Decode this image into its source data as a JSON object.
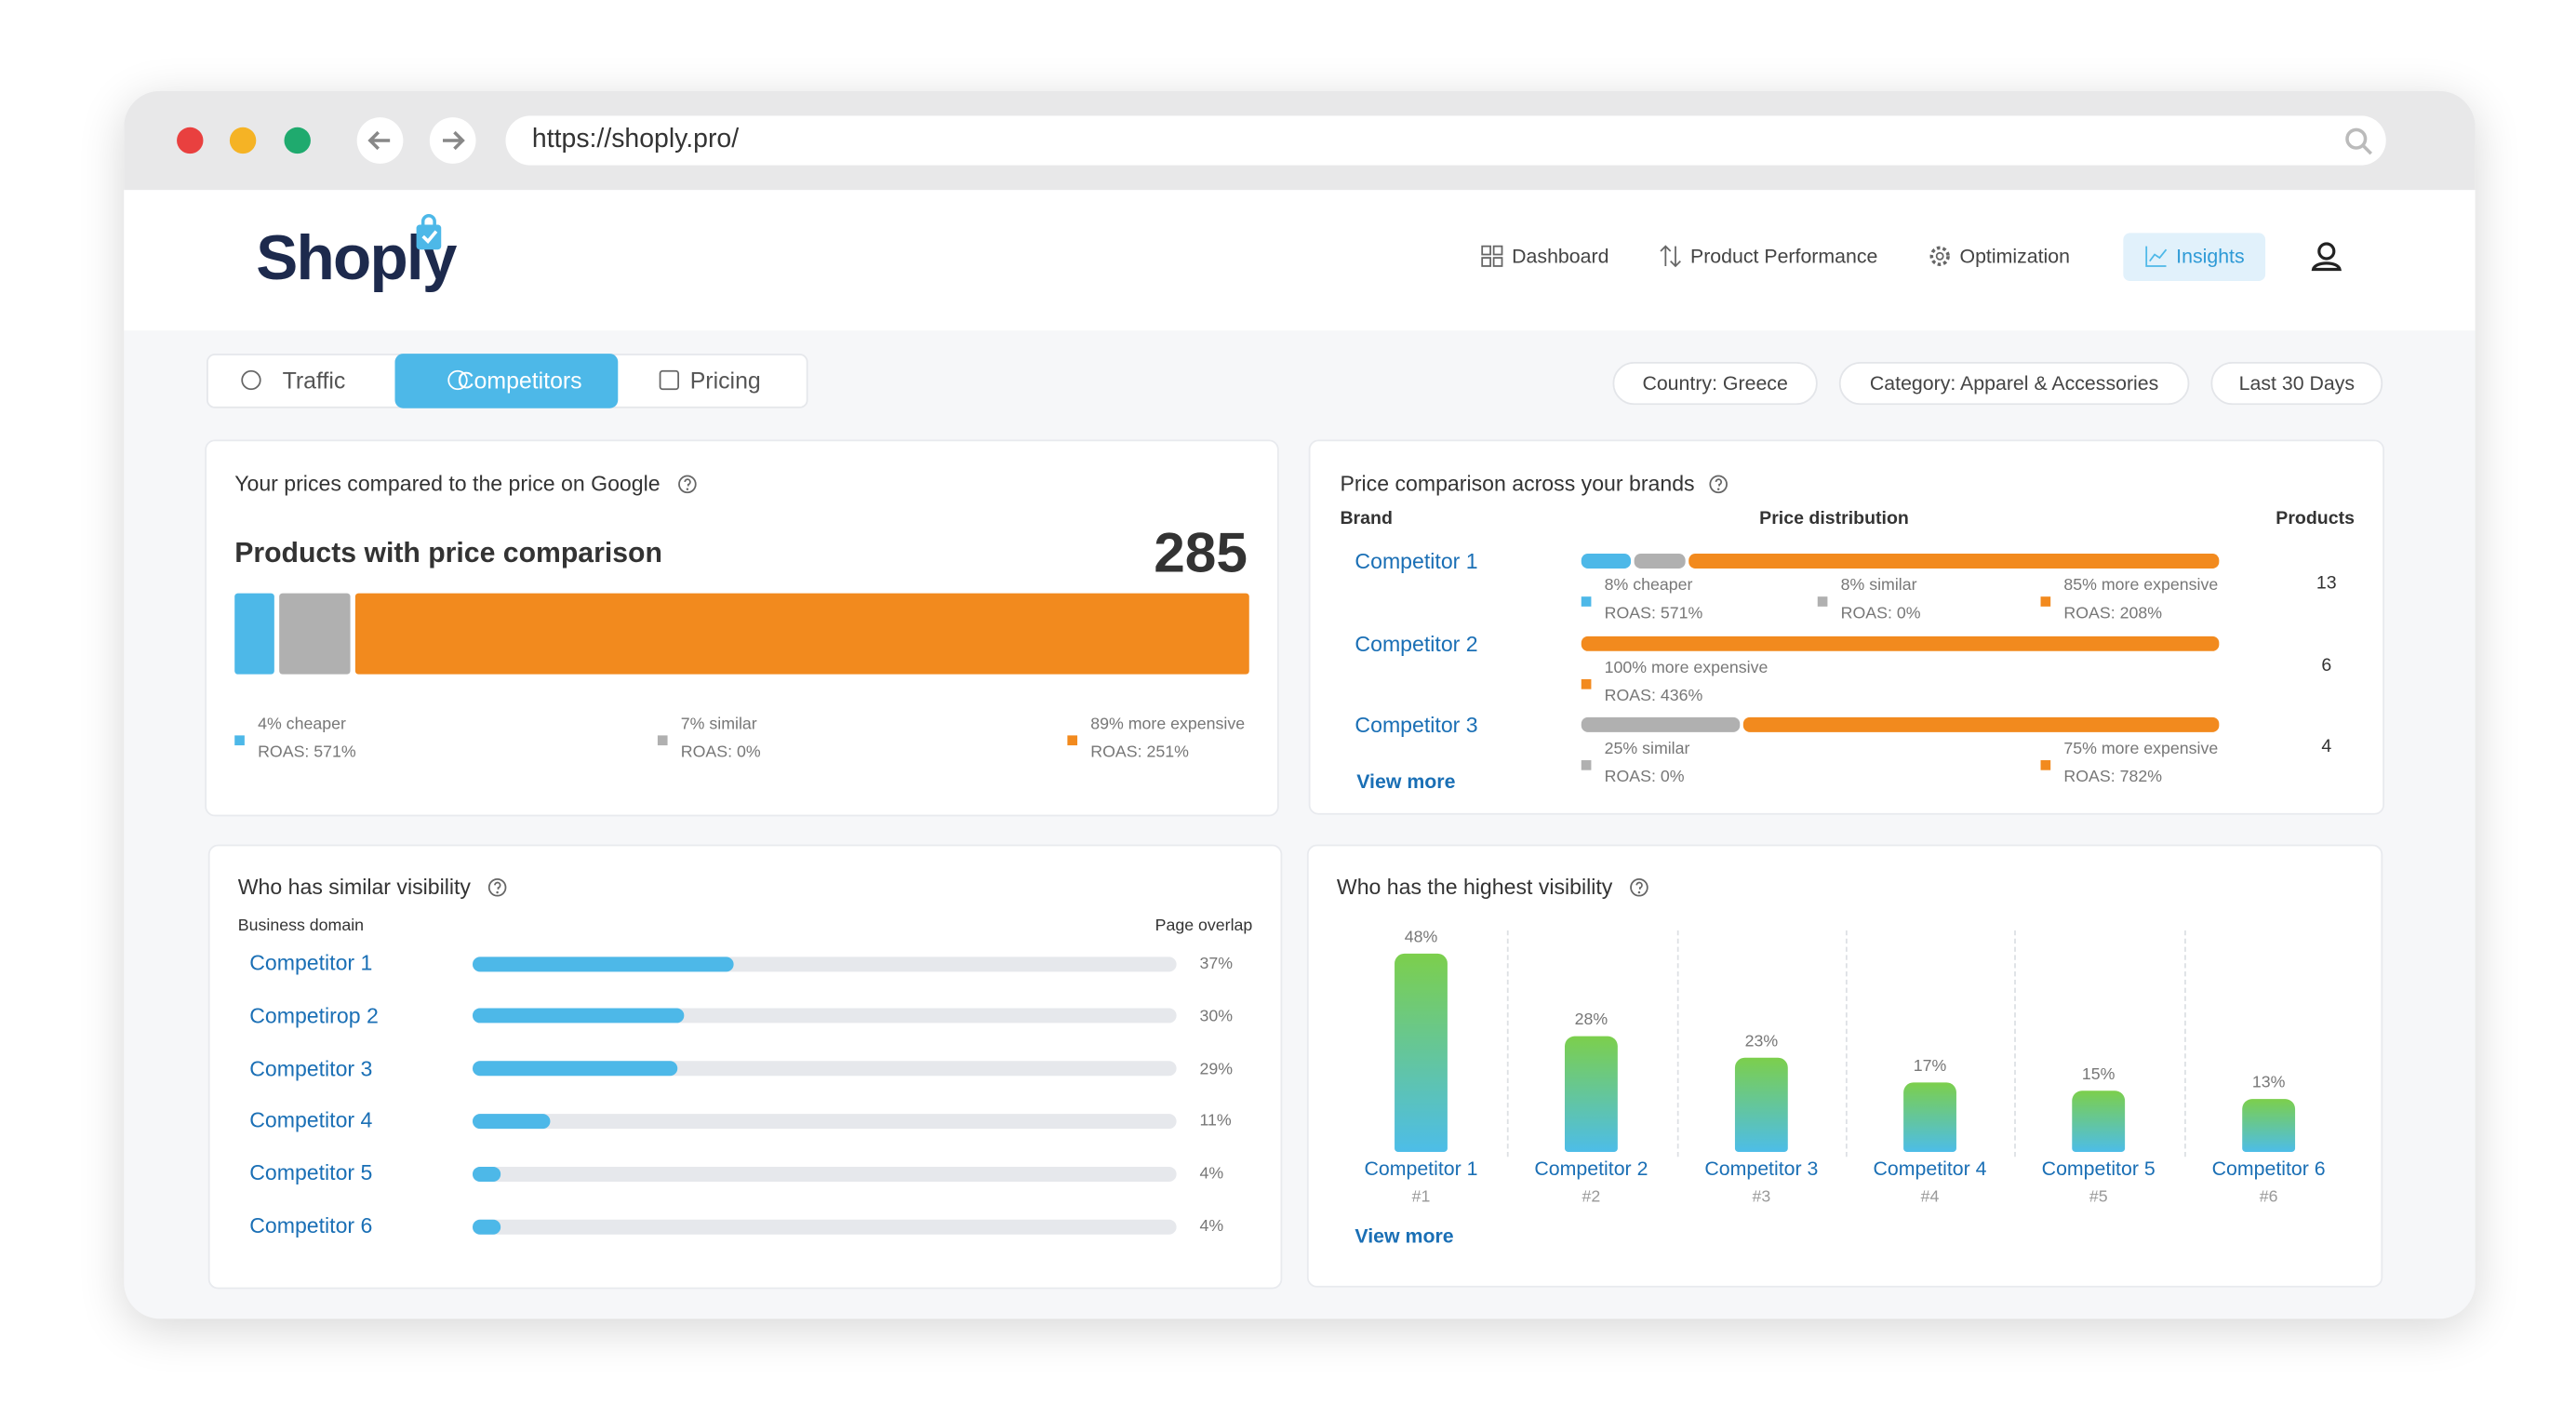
{
  "browser": {
    "url": "https://shoply.pro/"
  },
  "header": {
    "logo": "Shoply",
    "nav": [
      "Dashboard",
      "Product Performance",
      "Optimization",
      "Insights"
    ]
  },
  "tabs": [
    "Traffic",
    "Competitors",
    "Pricing"
  ],
  "filters": [
    "Country: Greece",
    "Category: Apparel & Accessories",
    "Last 30 Days"
  ],
  "price_panel": {
    "title": "Your prices compared to the price on Google",
    "subtitle": "Products with price comparison",
    "total": 285,
    "segments": [
      {
        "label": "4% cheaper",
        "value": 4,
        "roas": "ROAS: 571%",
        "color": "#4db8e8"
      },
      {
        "label": "7% similar",
        "value": 7,
        "roas": "ROAS: 0%",
        "color": "#b0b0b0"
      },
      {
        "label": "89% more expensive",
        "value": 89,
        "roas": "ROAS: 251%",
        "color": "#f28a1e"
      }
    ]
  },
  "brands_panel": {
    "title": "Price comparison across your brands",
    "columns": [
      "Brand",
      "Price distribution",
      "Products"
    ],
    "rows": [
      {
        "brand": "Competitor 1",
        "products": 13,
        "segments": [
          {
            "label": "8% cheaper",
            "value": 8,
            "roas": "ROAS: 571%",
            "color": "#4db8e8"
          },
          {
            "label": "8% similar",
            "value": 8,
            "roas": "ROAS: 0%",
            "color": "#b0b0b0"
          },
          {
            "label": "85% more expensive",
            "value": 85,
            "roas": "ROAS: 208%",
            "color": "#f28a1e"
          }
        ]
      },
      {
        "brand": "Competitor 2",
        "products": 6,
        "segments": [
          {
            "label": "100% more expensive",
            "value": 100,
            "roas": "ROAS: 436%",
            "color": "#f28a1e"
          }
        ]
      },
      {
        "brand": "Competitor 3",
        "products": 4,
        "segments": [
          {
            "label": "25% similar",
            "value": 25,
            "roas": "ROAS: 0%",
            "color": "#b0b0b0"
          },
          {
            "label": "75% more expensive",
            "value": 75,
            "roas": "ROAS: 782%",
            "color": "#f28a1e"
          }
        ]
      }
    ],
    "view_more": "View more"
  },
  "similar_panel": {
    "title": "Who has similar visibility",
    "columns": [
      "Business domain",
      "Page overlap"
    ],
    "rows": [
      {
        "name": "Competitor 1",
        "value": 37,
        "label": "37%"
      },
      {
        "name": "Competirор 2",
        "value": 30,
        "label": "30%"
      },
      {
        "name": "Competitor 3",
        "value": 29,
        "label": "29%"
      },
      {
        "name": "Competitor 4",
        "value": 11,
        "label": "11%"
      },
      {
        "name": "Competitor 5",
        "value": 4,
        "label": "4%"
      },
      {
        "name": "Competitor 6",
        "value": 4,
        "label": "4%"
      }
    ]
  },
  "highest_panel": {
    "title": "Who has the highest visibility",
    "bars": [
      {
        "name": "Competitor 1",
        "rank": "#1",
        "value": 48,
        "label": "48%"
      },
      {
        "name": "Competitor 2",
        "rank": "#2",
        "value": 28,
        "label": "28%"
      },
      {
        "name": "Competitor 3",
        "rank": "#3",
        "value": 23,
        "label": "23%"
      },
      {
        "name": "Competitor 4",
        "rank": "#4",
        "value": 17,
        "label": "17%"
      },
      {
        "name": "Competitor 5",
        "rank": "#5",
        "value": 15,
        "label": "15%"
      },
      {
        "name": "Competitor 6",
        "rank": "#6",
        "value": 13,
        "label": "13%"
      }
    ],
    "view_more": "View more"
  }
}
